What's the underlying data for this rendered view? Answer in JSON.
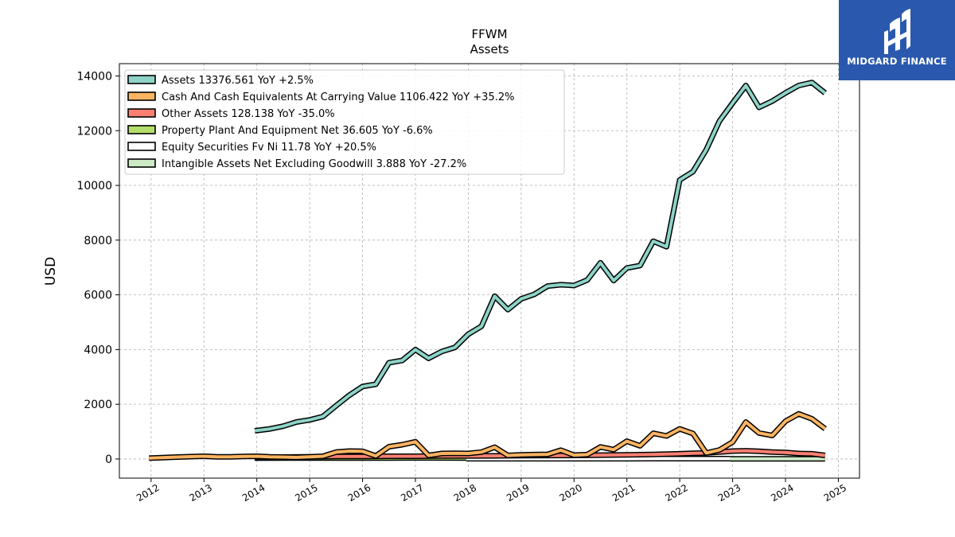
{
  "brand": {
    "name": "MIDGARD FINANCE"
  },
  "chart_data": {
    "type": "line",
    "title": "FFWM",
    "subtitle": "Assets",
    "ylabel": "USD",
    "xlabel": "",
    "xlim": [
      2011.4,
      2025.4
    ],
    "ylim": [
      -700,
      14450
    ],
    "grid": true,
    "legend_position": "top-left",
    "x_ticks": [
      "2012",
      "2013",
      "2014",
      "2015",
      "2016",
      "2017",
      "2018",
      "2019",
      "2020",
      "2021",
      "2022",
      "2023",
      "2024",
      "2025"
    ],
    "y_ticks": [
      0,
      2000,
      4000,
      6000,
      8000,
      10000,
      12000,
      14000
    ],
    "series": [
      {
        "name": "Assets  13376.561 YoY +2.5%",
        "color": "#8dd3c7",
        "x": [
          2013.96,
          2014.25,
          2014.5,
          2014.75,
          2015.0,
          2015.25,
          2015.5,
          2015.75,
          2016.0,
          2016.25,
          2016.5,
          2016.75,
          2017.0,
          2017.25,
          2017.5,
          2017.75,
          2018.0,
          2018.25,
          2018.5,
          2018.75,
          2019.0,
          2019.25,
          2019.5,
          2019.75,
          2020.0,
          2020.25,
          2020.5,
          2020.75,
          2021.0,
          2021.25,
          2021.5,
          2021.75,
          2022.0,
          2022.25,
          2022.5,
          2022.75,
          2023.0,
          2023.25,
          2023.5,
          2023.75,
          2024.0,
          2024.25,
          2024.5,
          2024.75
        ],
        "y": [
          1030,
          1100,
          1200,
          1350,
          1430,
          1550,
          1950,
          2330,
          2650,
          2730,
          3520,
          3600,
          4000,
          3680,
          3930,
          4080,
          4560,
          4850,
          5950,
          5460,
          5850,
          6020,
          6320,
          6370,
          6340,
          6540,
          7170,
          6520,
          6980,
          7070,
          7960,
          7760,
          10200,
          10500,
          11300,
          12350,
          13010,
          13650,
          12850,
          13080,
          13380,
          13650,
          13760,
          13377
        ]
      },
      {
        "name": "Cash And Cash Equivalents At Carrying Value  1106.422 YoY +35.2%",
        "color": "#fdb462",
        "x": [
          2011.96,
          2012.5,
          2013.0,
          2013.25,
          2013.5,
          2013.75,
          2014.0,
          2014.25,
          2014.5,
          2014.75,
          2015.0,
          2015.25,
          2015.5,
          2015.75,
          2016.0,
          2016.25,
          2016.5,
          2016.75,
          2017.0,
          2017.25,
          2017.5,
          2017.75,
          2018.0,
          2018.25,
          2018.5,
          2018.75,
          2019.0,
          2019.25,
          2019.5,
          2019.75,
          2020.0,
          2020.25,
          2020.5,
          2020.75,
          2021.0,
          2021.25,
          2021.5,
          2021.75,
          2022.0,
          2022.25,
          2022.5,
          2022.75,
          2023.0,
          2023.25,
          2023.5,
          2023.75,
          2024.0,
          2024.25,
          2024.5,
          2024.75
        ],
        "y": [
          30,
          70,
          100,
          80,
          80,
          90,
          100,
          80,
          70,
          60,
          80,
          100,
          250,
          290,
          280,
          110,
          450,
          520,
          630,
          130,
          200,
          210,
          200,
          250,
          430,
          130,
          150,
          160,
          170,
          320,
          140,
          160,
          440,
          340,
          650,
          480,
          940,
          840,
          1100,
          930,
          220,
          330,
          620,
          1350,
          950,
          860,
          1380,
          1650,
          1470,
          1106
        ]
      },
      {
        "name": "Other Assets  128.138 YoY -35.0%",
        "color": "#fb8072",
        "x": [
          2013.96,
          2014.5,
          2015.0,
          2015.5,
          2016.0,
          2016.5,
          2017.0,
          2017.5,
          2018.0,
          2018.5,
          2019.0,
          2019.5,
          2020.0,
          2020.5,
          2021.0,
          2021.5,
          2022.0,
          2022.25,
          2022.5,
          2022.75,
          2023.0,
          2023.25,
          2023.5,
          2023.75,
          2024.0,
          2024.25,
          2024.5,
          2024.75
        ],
        "y": [
          60,
          70,
          80,
          90,
          90,
          100,
          100,
          110,
          110,
          115,
          120,
          125,
          130,
          140,
          150,
          165,
          190,
          210,
          220,
          250,
          290,
          300,
          280,
          250,
          240,
          200,
          190,
          128
        ]
      },
      {
        "name": "Property Plant And Equipment Net  36.605 YoY -6.6%",
        "color": "#b3de69",
        "x": [
          2013.96,
          2014.5,
          2015.0,
          2015.5,
          2016.0,
          2016.5,
          2017.0,
          2017.5,
          2017.96
        ],
        "y": [
          30,
          32,
          34,
          35,
          36,
          37,
          38,
          38,
          37
        ]
      },
      {
        "name": "Equity Securities Fv Ni  11.78 YoY +20.5%",
        "color": "#ffffff",
        "x": [
          2017.96,
          2018.5,
          2019.0,
          2019.5,
          2020.0,
          2020.5,
          2021.0,
          2021.5,
          2022.0,
          2022.5,
          2022.96
        ],
        "y": [
          10,
          10,
          10,
          10,
          10,
          10,
          10,
          11,
          11,
          11,
          12
        ]
      },
      {
        "name": "Intangible Assets Net Excluding Goodwill  3.888 YoY -27.2%",
        "color": "#ccebc5",
        "x": [
          2022.96,
          2023.5,
          2024.0,
          2024.5,
          2024.75
        ],
        "y": [
          6,
          5,
          5,
          4,
          4
        ]
      }
    ]
  }
}
